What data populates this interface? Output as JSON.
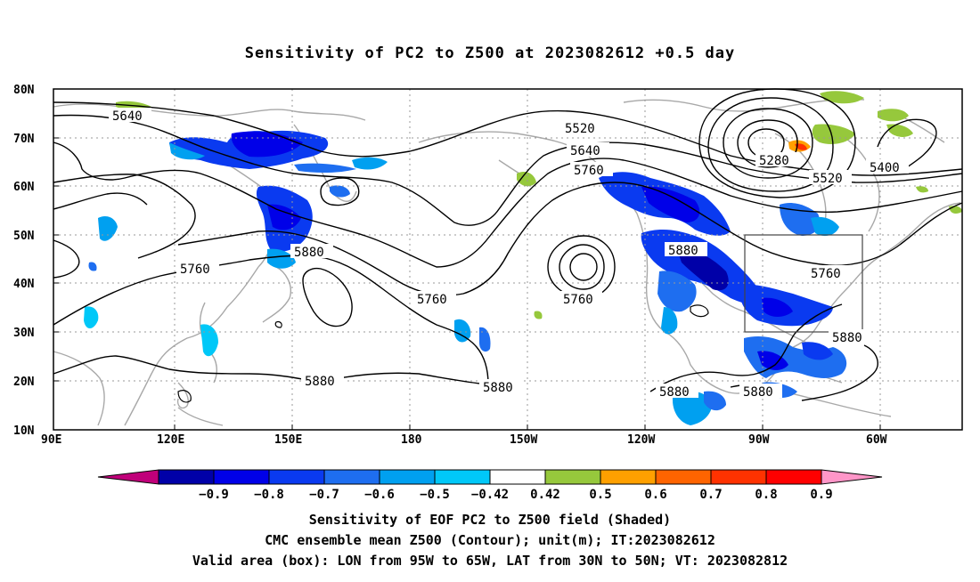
{
  "title": "Sensitivity of PC2 to Z500 at 2023082612 +0.5 day",
  "axes": {
    "lat_labels": [
      "80N",
      "70N",
      "60N",
      "50N",
      "40N",
      "30N",
      "20N",
      "10N"
    ],
    "lon_labels": [
      "90E",
      "120E",
      "150E",
      "180",
      "150W",
      "120W",
      "90W",
      "60W"
    ]
  },
  "contour_labels": [
    "5640",
    "5520",
    "5640",
    "5760",
    "5280",
    "5400",
    "5520",
    "5880",
    "5760",
    "5760",
    "5880",
    "5760",
    "5880",
    "5880",
    "5880",
    "5880",
    "5880"
  ],
  "colorbar": {
    "labels": [
      "-0.9",
      "-0.8",
      "-0.7",
      "-0.6",
      "-0.5",
      "-0.42",
      "0.42",
      "0.5",
      "0.6",
      "0.7",
      "0.8",
      "0.9"
    ],
    "colors": [
      "#c0007a",
      "#0000a8",
      "#0000e8",
      "#0a3af0",
      "#1e6ef0",
      "#00a0f0",
      "#00c8f8",
      "#ffffff",
      "#96c83c",
      "#ffa000",
      "#ff6400",
      "#ff3200",
      "#ff0000",
      "#ff96c8"
    ]
  },
  "box": {
    "lon_min": "95W",
    "lon_max": "65W",
    "lat_min": "30N",
    "lat_max": "50N"
  },
  "captions": [
    "Sensitivity of EOF PC2 to Z500 field (Shaded)",
    "CMC ensemble mean Z500 (Contour); unit(m); IT:2023082612",
    "Valid area (box): LON from 95W to 65W, LAT from 30N to 50N; VT: 2023082812"
  ]
}
